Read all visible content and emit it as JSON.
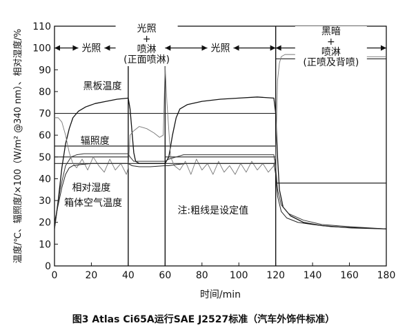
{
  "figure": {
    "caption": "图3  Atlas Ci65A运行SAE J2527标准（汽车外饰件标准）"
  },
  "chart_data": {
    "type": "line",
    "xlabel": "时间/min",
    "ylabel": "温度/℃、辐照度/×100（W/m² @340 nm）、相对湿度/%",
    "xlim": [
      0,
      180
    ],
    "ylim": [
      0,
      110
    ],
    "xticks": [
      0,
      20,
      40,
      60,
      80,
      100,
      120,
      140,
      160,
      180
    ],
    "yticks": [
      0,
      10,
      20,
      30,
      40,
      50,
      60,
      70,
      80,
      90,
      100,
      110
    ],
    "grid": false,
    "phase_boundaries": [
      40,
      60,
      120
    ],
    "phases": [
      {
        "label": "光照",
        "from": 0,
        "to": 40
      },
      {
        "label": "光照\n+\n喷淋\n(正面喷淋)",
        "from": 40,
        "to": 60
      },
      {
        "label": "光照",
        "from": 60,
        "to": 120
      },
      {
        "label": "黑暗\n+\n喷淋\n(正喷及背喷)",
        "from": 120,
        "to": 180
      }
    ],
    "annotations": [
      {
        "text": "黑板温度",
        "x": 26,
        "y": 81
      },
      {
        "text": "辐照度",
        "x": 22,
        "y": 56
      },
      {
        "text": "相对湿度",
        "x": 20,
        "y": 34.5
      },
      {
        "text": "箱体空气温度",
        "x": 21,
        "y": 27.5
      },
      {
        "text": "注:粗线是设定值",
        "x": 86,
        "y": 24
      }
    ],
    "setpoints": [
      {
        "name": "黑板温度设定",
        "points": [
          [
            0,
            70
          ],
          [
            120,
            70
          ]
        ]
      },
      {
        "name": "辐照度设定",
        "points": [
          [
            0,
            55
          ],
          [
            120,
            55
          ]
        ]
      },
      {
        "name": "相对湿度设定 (光照)",
        "points": [
          [
            0,
            50
          ],
          [
            40,
            50
          ]
        ]
      },
      {
        "name": "相对湿度设定 (光照)",
        "points": [
          [
            60,
            50
          ],
          [
            120,
            50
          ]
        ]
      },
      {
        "name": "相对湿度设定 (黑暗)",
        "points": [
          [
            120,
            95
          ],
          [
            180,
            95
          ]
        ]
      },
      {
        "name": "箱体空气温度设定",
        "points": [
          [
            0,
            47
          ],
          [
            120,
            47
          ]
        ]
      },
      {
        "name": "箱体空气温度设定 (黑暗)",
        "points": [
          [
            120,
            38
          ],
          [
            180,
            38
          ]
        ]
      }
    ],
    "series": [
      {
        "name": "黑板温度",
        "points": [
          [
            0,
            17
          ],
          [
            2,
            30
          ],
          [
            4,
            45
          ],
          [
            6,
            56
          ],
          [
            8,
            63
          ],
          [
            10,
            68
          ],
          [
            13,
            71
          ],
          [
            17,
            73
          ],
          [
            22,
            74.5
          ],
          [
            28,
            75.5
          ],
          [
            34,
            76.5
          ],
          [
            40,
            77
          ],
          [
            41,
            72
          ],
          [
            42,
            62
          ],
          [
            43,
            52
          ],
          [
            44,
            48
          ],
          [
            46,
            47
          ],
          [
            50,
            47
          ],
          [
            55,
            47
          ],
          [
            60,
            47
          ],
          [
            62,
            50
          ],
          [
            64,
            60
          ],
          [
            66,
            68
          ],
          [
            68,
            72
          ],
          [
            72,
            74
          ],
          [
            80,
            75.5
          ],
          [
            90,
            76.5
          ],
          [
            100,
            77
          ],
          [
            110,
            77.5
          ],
          [
            119,
            77
          ],
          [
            120,
            70
          ],
          [
            121,
            50
          ],
          [
            122,
            35
          ],
          [
            124,
            27
          ],
          [
            128,
            23
          ],
          [
            135,
            20
          ],
          [
            145,
            18.5
          ],
          [
            160,
            17.5
          ],
          [
            180,
            17
          ]
        ]
      },
      {
        "name": "辐照度",
        "points": [
          [
            0,
            17
          ],
          [
            3,
            35
          ],
          [
            6,
            46
          ],
          [
            9,
            50
          ],
          [
            12,
            51
          ],
          [
            16,
            51.5
          ],
          [
            20,
            51.5
          ],
          [
            40,
            51.5
          ],
          [
            41,
            50
          ],
          [
            43,
            48
          ],
          [
            50,
            48
          ],
          [
            60,
            48
          ],
          [
            62,
            49
          ],
          [
            66,
            50
          ],
          [
            70,
            51
          ],
          [
            80,
            51
          ],
          [
            100,
            51
          ],
          [
            119,
            51
          ],
          [
            120,
            45
          ],
          [
            121,
            35
          ],
          [
            123,
            28
          ],
          [
            127,
            24
          ],
          [
            135,
            21
          ],
          [
            145,
            19
          ],
          [
            160,
            18
          ],
          [
            180,
            17
          ]
        ]
      },
      {
        "name": "相对湿度",
        "points": [
          [
            0,
            68
          ],
          [
            2,
            68
          ],
          [
            4,
            66
          ],
          [
            6,
            60
          ],
          [
            8,
            52
          ],
          [
            10,
            47
          ],
          [
            12,
            45
          ],
          [
            15,
            49
          ],
          [
            18,
            44
          ],
          [
            21,
            50
          ],
          [
            24,
            46
          ],
          [
            27,
            43
          ],
          [
            30,
            49
          ],
          [
            33,
            44
          ],
          [
            36,
            47
          ],
          [
            39,
            42
          ],
          [
            40,
            45
          ],
          [
            41,
            60
          ],
          [
            43,
            62
          ],
          [
            46,
            64
          ],
          [
            50,
            63
          ],
          [
            54,
            61
          ],
          [
            57,
            59
          ],
          [
            59,
            60
          ],
          [
            60,
            92
          ],
          [
            61,
            75
          ],
          [
            63,
            50
          ],
          [
            65,
            46
          ],
          [
            68,
            44
          ],
          [
            71,
            48
          ],
          [
            74,
            42
          ],
          [
            77,
            49
          ],
          [
            80,
            44
          ],
          [
            83,
            47
          ],
          [
            86,
            42
          ],
          [
            89,
            48
          ],
          [
            92,
            43
          ],
          [
            95,
            46
          ],
          [
            98,
            42
          ],
          [
            101,
            47
          ],
          [
            104,
            43
          ],
          [
            107,
            48
          ],
          [
            110,
            44
          ],
          [
            113,
            47
          ],
          [
            116,
            43
          ],
          [
            119,
            46
          ],
          [
            120,
            50
          ],
          [
            121,
            85
          ],
          [
            122,
            93
          ],
          [
            123,
            96
          ],
          [
            125,
            97
          ],
          [
            130,
            97
          ],
          [
            140,
            96.5
          ],
          [
            150,
            96.5
          ],
          [
            160,
            96
          ],
          [
            170,
            96
          ],
          [
            180,
            96
          ]
        ]
      },
      {
        "name": "箱体空气温度",
        "points": [
          [
            0,
            20
          ],
          [
            2,
            28
          ],
          [
            4,
            36
          ],
          [
            6,
            42
          ],
          [
            8,
            45
          ],
          [
            10,
            46
          ],
          [
            14,
            46.5
          ],
          [
            20,
            47
          ],
          [
            30,
            47
          ],
          [
            40,
            47
          ],
          [
            42,
            46
          ],
          [
            46,
            45.5
          ],
          [
            52,
            45.5
          ],
          [
            60,
            46
          ],
          [
            62,
            46
          ],
          [
            66,
            46.5
          ],
          [
            72,
            47
          ],
          [
            90,
            47
          ],
          [
            119,
            47
          ],
          [
            120,
            42
          ],
          [
            121,
            32
          ],
          [
            123,
            25
          ],
          [
            126,
            22
          ],
          [
            132,
            20
          ],
          [
            140,
            19
          ],
          [
            150,
            18
          ],
          [
            165,
            17.5
          ],
          [
            180,
            17
          ]
        ]
      }
    ]
  }
}
